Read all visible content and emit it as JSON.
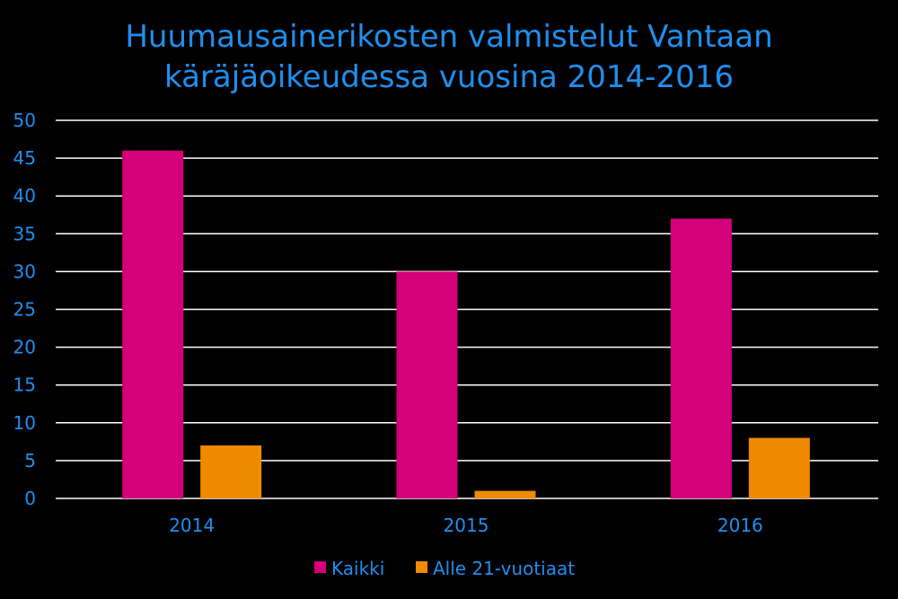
{
  "chart_data": {
    "type": "bar",
    "title_lines": [
      "Huumausainerikosten valmistelut Vantaan",
      "käräjäoikeudessa vuosina 2014-2016"
    ],
    "categories": [
      "2014",
      "2015",
      "2016"
    ],
    "series": [
      {
        "name": "Kaikki",
        "values": [
          46,
          30,
          37
        ],
        "color": "#d4007a"
      },
      {
        "name": "Alle 21-vuotiaat",
        "values": [
          7,
          1,
          8
        ],
        "color": "#f08a00"
      }
    ],
    "ylim": [
      0,
      50
    ],
    "yticks": [
      "0",
      "5",
      "10",
      "15",
      "20",
      "25",
      "30",
      "35",
      "40",
      "45",
      "50"
    ],
    "grid": true,
    "legend_position": "bottom",
    "background": "#000000",
    "text_color": "#1f8fef",
    "grid_color": "#ffffff"
  }
}
